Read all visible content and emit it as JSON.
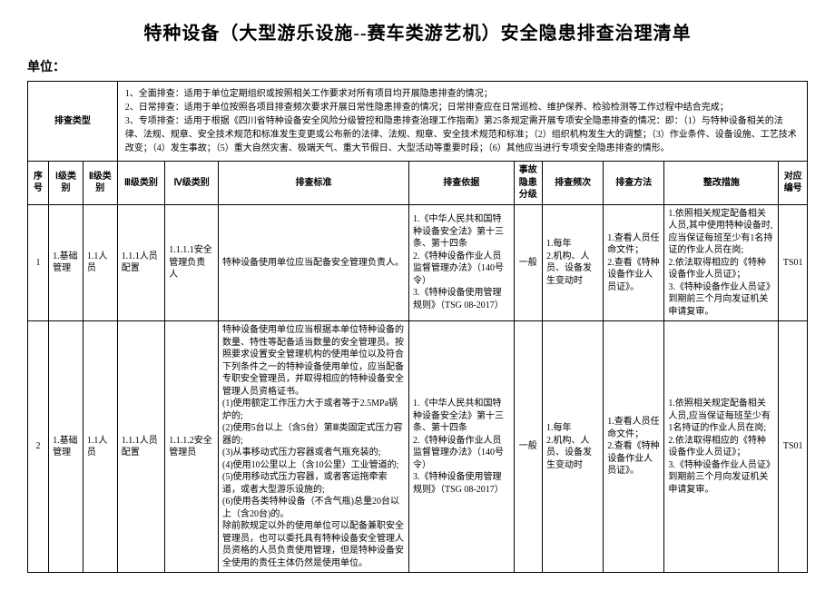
{
  "title": "特种设备（大型游乐设施--赛车类游艺机）安全隐患排查治理清单",
  "unit_label": "单位：",
  "type_header": "排查类型",
  "type_desc": "1、全面排查：适用于单位定期组织或按照相关工作要求对所有项目均开展隐患排查的情况；\n2、日常排查：适用于单位按照各项目排查频次要求开展日常性隐患排查的情况；日常排查应在日常巡检、维护保养、检验检测等工作过程中结合完成；\n3、专项排查：适用于根据《四川省特种设备安全风险分级管控和隐患排查治理工作指南》第25条规定需开展专项安全隐患排查的情况：即：（1）与特种设备相关的法律、法规、规章、安全技术规范和标准发生变更或公布新的法律、法规、规章、安全技术规范和标准；（2）组织机构发生大的调整；（3）作业条件、设备设施、工艺技术改变；（4）发生事故；（5）重大自然灾害、极端天气、重大节假日、大型活动等重要时段；（6）其他应当进行专项安全隐患排查的情形。",
  "headers": {
    "seq": "序号",
    "l1": "Ⅰ级类别",
    "l2": "Ⅱ级类别",
    "l3": "Ⅲ级类别",
    "l4": "Ⅳ级类别",
    "standard": "排查标准",
    "basis": "排查依据",
    "grade": "事故隐患分级",
    "freq": "排查频次",
    "method": "排查方法",
    "action": "整改措施",
    "code": "对应编号"
  },
  "rows": [
    {
      "seq": "1",
      "l1": "1.基础管理",
      "l2": "1.1人员",
      "l3": "1.1.1人员配置",
      "l4": "1.1.1.1安全管理负责人",
      "standard": "特种设备使用单位应当配备安全管理负责人。",
      "basis": "1.《中华人民共和国特种设备安全法》第十三条、第十四条\n2.《特种设备作业人员监督管理办法》（140号令）\n3.《特种设备使用管理规则》（TSG 08-2017）",
      "grade": "一般",
      "freq": "1.每年\n2.机构、人员、设备发生变动时",
      "method": "1.查看人员任命文件；\n2.查看《特种设备作业人员证》。",
      "action": "1.依照相关规定配备相关人员,其中使用特种设备时,应当保证每班至少有1名持证的作业人员在岗;\n2.依法取得相应的《特种设备作业人员证》；\n3.《特种设备作业人员证》到期前三个月向发证机关申请复审。",
      "code": "TS01"
    },
    {
      "seq": "2",
      "l1": "1.基础管理",
      "l2": "1.1人员",
      "l3": "1.1.1人员配置",
      "l4": "1.1.1.2安全管理员",
      "standard": "特种设备使用单位应当根据本单位特种设备的数量、特性等配备适当数量的安全管理员。按照要求设置安全管理机构的使用单位以及符合下列条件之一的特种设备使用单位，应当配备专职安全管理员，并取得相应的特种设备安全管理人员资格证书。\n(1)使用额定工作压力大于或者等于2.5MPa锅炉的;\n(2)使用5台以上（含5台）第Ⅲ类固定式压力容器的;\n(3)从事移动式压力容器或者气瓶充装的;\n(4)使用10公里以上（含10公里）工业管道的;\n(5)使用移动式压力容器，或者客运拖牵索道，或者大型游乐设施的;\n(6)使用各类特种设备（不含气瓶)总量20台以上（含20台)的。\n除前款规定以外的使用单位可以配备兼职安全管理员，也可以委托具有特种设备安全管理人员资格的人员负责使用管理，但是特种设备安全使用的责任主体仍然是使用单位。",
      "basis": "1.《中华人民共和国特种设备安全法》第十三条、第十四条\n2.《特种设备作业人员监督管理办法》（140号令）\n3.《特种设备使用管理规则》（TSG 08-2017）",
      "grade": "一般",
      "freq": "1.每年\n2.机构、人员、设备发生变动时",
      "method": "1.查看人员任命文件；\n2.查看《特种设备作业人员证》。",
      "action": "1.依照相关规定配备相关人员,应当保证每班至少有1名持证的作业人员在岗;\n2.依法取得相应的《特种设备作业人员证》；\n3.《特种设备作业人员证》到期前三个月向发证机关申请复审。",
      "code": "TS01"
    }
  ]
}
